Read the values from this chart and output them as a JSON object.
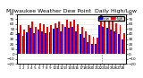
{
  "title": "Milwaukee Weather Dew Point  Daily High/Low",
  "background_color": "#ffffff",
  "grid_color": "#dddddd",
  "legend_blue": "Low",
  "legend_red": "High",
  "dotted_line_x": 21.5,
  "highs": [
    58,
    48,
    58,
    65,
    55,
    62,
    60,
    55,
    58,
    62,
    65,
    60,
    68,
    65,
    68,
    60,
    55,
    45,
    38,
    35,
    32,
    78,
    72,
    68,
    65,
    62,
    58,
    42
  ],
  "lows": [
    42,
    36,
    44,
    52,
    42,
    48,
    46,
    42,
    44,
    50,
    52,
    46,
    55,
    52,
    55,
    46,
    40,
    32,
    24,
    20,
    20,
    58,
    54,
    52,
    48,
    46,
    40,
    30
  ],
  "ylim_min": -20,
  "ylim_max": 80,
  "yticks": [
    -20,
    -10,
    0,
    10,
    20,
    30,
    40,
    50,
    60,
    70,
    80
  ],
  "title_fontsize": 4.5,
  "tick_fontsize": 3.0,
  "legend_fontsize": 3.0,
  "bar_width": 0.45
}
